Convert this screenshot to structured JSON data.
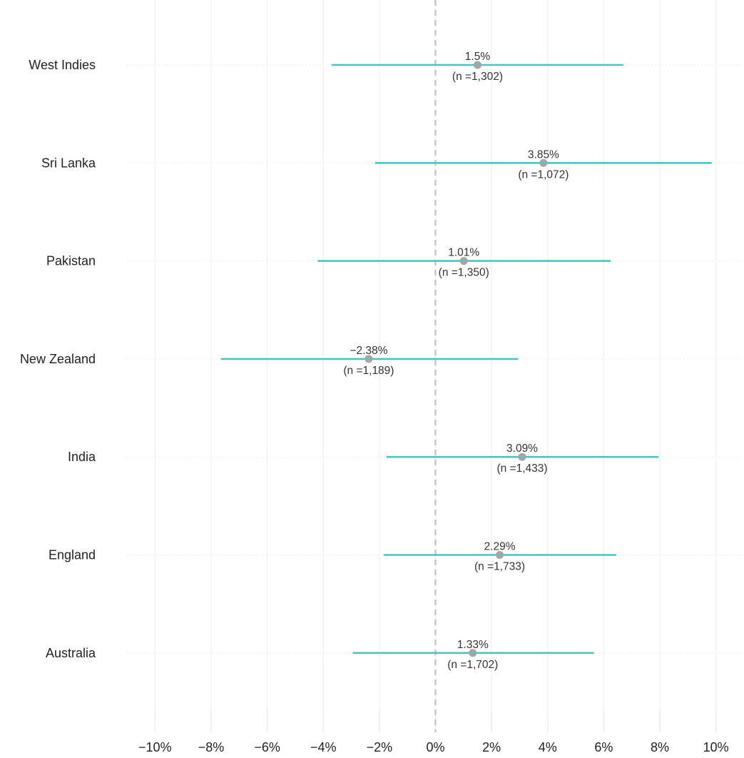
{
  "chart_data": {
    "type": "forest",
    "title": "",
    "xlabel": "",
    "ylabel": "",
    "xlim": [
      -11,
      11
    ],
    "x_ticks": [
      -10,
      -8,
      -6,
      -4,
      -2,
      0,
      2,
      4,
      6,
      8,
      10
    ],
    "x_tick_labels": [
      "−10%",
      "−8%",
      "−6%",
      "−4%",
      "−2%",
      "0%",
      "2%",
      "4%",
      "6%",
      "8%",
      "10%"
    ],
    "reference_line": 0,
    "grid": true,
    "colors": {
      "interval": "#4ec4c2",
      "point": "#9aaaa8",
      "zero_line": "#c2c2c2"
    },
    "rows": [
      {
        "category": "West Indies",
        "estimate": 1.5,
        "lower": -3.7,
        "upper": 6.7,
        "value_label": "1.5%",
        "n_label": "(n =1,302)"
      },
      {
        "category": "Sri Lanka",
        "estimate": 3.85,
        "lower": -2.15,
        "upper": 9.85,
        "value_label": "3.85%",
        "n_label": "(n =1,072)"
      },
      {
        "category": "Pakistan",
        "estimate": 1.01,
        "lower": -4.2,
        "upper": 6.25,
        "value_label": "1.01%",
        "n_label": "(n =1,350)"
      },
      {
        "category": "New Zealand",
        "estimate": -2.38,
        "lower": -7.65,
        "upper": 2.95,
        "value_label": "−2.38%",
        "n_label": "(n =1,189)"
      },
      {
        "category": "India",
        "estimate": 3.09,
        "lower": -1.75,
        "upper": 7.95,
        "value_label": "3.09%",
        "n_label": "(n =1,433)"
      },
      {
        "category": "England",
        "estimate": 2.29,
        "lower": -1.85,
        "upper": 6.45,
        "value_label": "2.29%",
        "n_label": "(n =1,733)"
      },
      {
        "category": "Australia",
        "estimate": 1.33,
        "lower": -2.95,
        "upper": 5.65,
        "value_label": "1.33%",
        "n_label": "(n =1,702)"
      }
    ]
  }
}
